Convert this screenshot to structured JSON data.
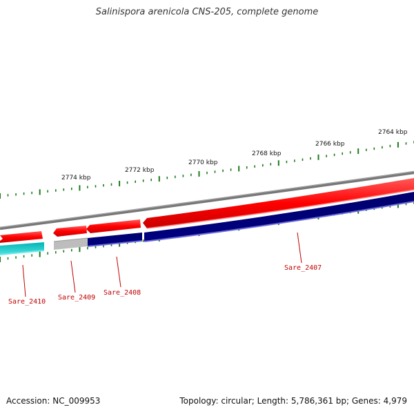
{
  "title": "Salinispora arenicola CNS-205, complete genome",
  "footer": {
    "accession": "Accession: NC_009953",
    "summary": "Topology: circular; Length: 5,786,361 bp; Genes: 4,979"
  },
  "ruler": {
    "labels": [
      "2764 kbp",
      "2766 kbp",
      "2768 kbp",
      "2770 kbp",
      "2772 kbp",
      "2774 kbp"
    ]
  },
  "genes": [
    {
      "name": "Sare_2410"
    },
    {
      "name": "Sare_2409"
    },
    {
      "name": "Sare_2408"
    },
    {
      "name": "Sare_2407"
    }
  ],
  "colors": {
    "forward_cds": "#ff0000",
    "reverse_cds": "#000080",
    "cyan_track": "#00c8c8",
    "grey_track": "#b4b4b4",
    "backbone": "#777777",
    "ticks": "#1a7a1a",
    "gene_label": "#c00000"
  }
}
